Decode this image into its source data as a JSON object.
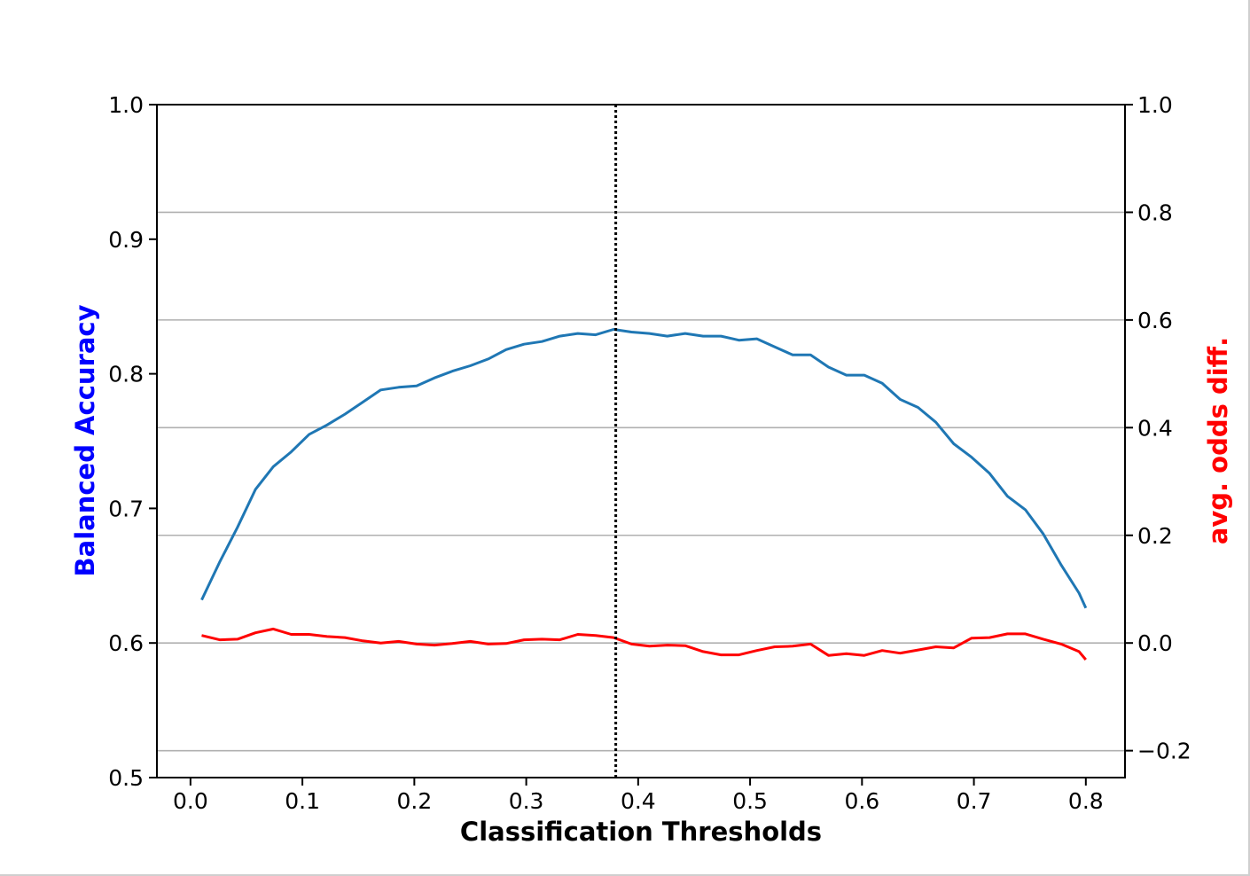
{
  "chart_data": {
    "type": "line",
    "xlabel": "Classification Thresholds",
    "ylabel_left": "Balanced Accuracy",
    "ylabel_right": "avg. odds diff.",
    "xlim": [
      -0.03,
      0.835
    ],
    "ylim_left": [
      0.5,
      1.0
    ],
    "ylim_right": [
      -0.25,
      1.0
    ],
    "xticks": [
      "0.0",
      "0.1",
      "0.2",
      "0.3",
      "0.4",
      "0.5",
      "0.6",
      "0.7",
      "0.8"
    ],
    "xtick_values": [
      0.0,
      0.1,
      0.2,
      0.3,
      0.4,
      0.5,
      0.6,
      0.7,
      0.8
    ],
    "yticks_left": [
      "0.5",
      "0.6",
      "0.7",
      "0.8",
      "0.9",
      "1.0"
    ],
    "ytick_values_left": [
      0.5,
      0.6,
      0.7,
      0.8,
      0.9,
      1.0
    ],
    "yticks_right": [
      "−0.2",
      "0.0",
      "0.2",
      "0.4",
      "0.6",
      "0.8",
      "1.0"
    ],
    "ytick_values_right": [
      -0.2,
      0.0,
      0.2,
      0.4,
      0.6,
      0.8,
      1.0
    ],
    "grid": "horizontal lines at right-axis ticks",
    "vline_x": 0.38,
    "x": [
      0.01,
      0.026,
      0.042,
      0.058,
      0.074,
      0.09,
      0.106,
      0.122,
      0.138,
      0.154,
      0.17,
      0.186,
      0.202,
      0.218,
      0.234,
      0.25,
      0.266,
      0.282,
      0.298,
      0.314,
      0.33,
      0.346,
      0.362,
      0.378,
      0.394,
      0.41,
      0.426,
      0.442,
      0.458,
      0.474,
      0.49,
      0.506,
      0.522,
      0.538,
      0.554,
      0.57,
      0.586,
      0.602,
      0.618,
      0.634,
      0.65,
      0.666,
      0.682,
      0.698,
      0.714,
      0.73,
      0.746,
      0.762,
      0.778,
      0.794,
      0.8
    ],
    "series": [
      {
        "name": "Balanced Accuracy",
        "axis": "left",
        "color": "#1f77b4",
        "values": [
          0.632,
          0.66,
          0.686,
          0.714,
          0.731,
          0.742,
          0.755,
          0.762,
          0.77,
          0.779,
          0.788,
          0.79,
          0.791,
          0.797,
          0.802,
          0.806,
          0.811,
          0.818,
          0.822,
          0.824,
          0.828,
          0.83,
          0.829,
          0.833,
          0.831,
          0.83,
          0.828,
          0.83,
          0.828,
          0.828,
          0.825,
          0.826,
          0.82,
          0.814,
          0.814,
          0.805,
          0.799,
          0.799,
          0.793,
          0.781,
          0.775,
          0.764,
          0.748,
          0.738,
          0.726,
          0.709,
          0.699,
          0.681,
          0.658,
          0.637,
          0.626
        ]
      },
      {
        "name": "avg. odds diff.",
        "axis": "right",
        "color": "#ff0000",
        "values": [
          0.014,
          0.006,
          0.007,
          0.019,
          0.026,
          0.016,
          0.016,
          0.012,
          0.01,
          0.004,
          0.0,
          0.003,
          -0.002,
          -0.004,
          -0.001,
          0.003,
          -0.002,
          -0.001,
          0.006,
          0.007,
          0.006,
          0.016,
          0.014,
          0.01,
          -0.002,
          -0.006,
          -0.004,
          -0.005,
          -0.016,
          -0.022,
          -0.022,
          -0.014,
          -0.007,
          -0.006,
          -0.002,
          -0.023,
          -0.02,
          -0.023,
          -0.014,
          -0.019,
          -0.013,
          -0.007,
          -0.009,
          0.009,
          0.01,
          0.017,
          0.017,
          0.007,
          -0.002,
          -0.016,
          -0.031
        ]
      }
    ]
  }
}
